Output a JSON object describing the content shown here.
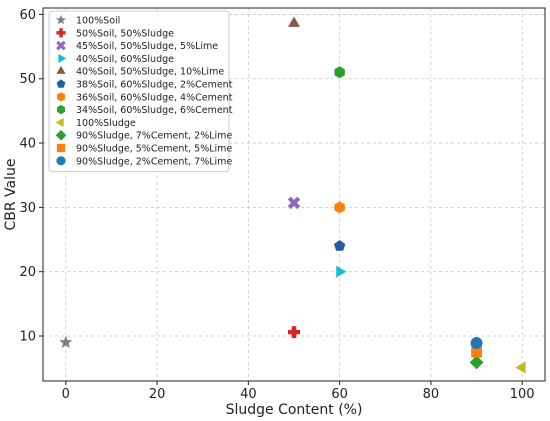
{
  "chart_data": {
    "type": "scatter",
    "title": "",
    "xlabel": "Sludge Content (%)",
    "ylabel": "CBR Value",
    "xlim": [
      -5,
      105
    ],
    "ylim": [
      3,
      61
    ],
    "xticks": [
      0,
      20,
      40,
      60,
      80,
      100
    ],
    "yticks": [
      10,
      20,
      30,
      40,
      50,
      60
    ],
    "grid": true,
    "grid_style": "dashed",
    "legend_position": "top-left",
    "series": [
      {
        "name": "100%Soil",
        "color": "#7f7f7f",
        "marker": "star",
        "points": [
          {
            "x": 0,
            "y": 9
          }
        ]
      },
      {
        "name": "50%Soil, 50%Sludge",
        "color": "#d62728",
        "marker": "plus",
        "points": [
          {
            "x": 50,
            "y": 10.6
          }
        ]
      },
      {
        "name": "45%Soil, 50%Sludge, 5%Lime",
        "color": "#9467bd",
        "marker": "x",
        "points": [
          {
            "x": 50,
            "y": 30.7
          }
        ]
      },
      {
        "name": "40%Soil, 60%Sludge",
        "color": "#17becf",
        "marker": "triangle-right",
        "points": [
          {
            "x": 60,
            "y": 20
          }
        ]
      },
      {
        "name": "40%Soil, 50%Sludge, 10%Lime",
        "color": "#8c564b",
        "marker": "triangle-up",
        "points": [
          {
            "x": 50,
            "y": 58.6
          }
        ]
      },
      {
        "name": "38%Soil, 60%Sludge, 2%Cement",
        "color": "#1f5fa0",
        "marker": "pentagon",
        "points": [
          {
            "x": 60,
            "y": 24
          }
        ]
      },
      {
        "name": "36%Soil, 60%Sludge, 4%Cement",
        "color": "#ff7f0e",
        "marker": "hexagon",
        "points": [
          {
            "x": 60,
            "y": 30
          }
        ]
      },
      {
        "name": "34%Soil, 60%Sludge, 6%Cement",
        "color": "#2ca02c",
        "marker": "hexagon",
        "points": [
          {
            "x": 60,
            "y": 51
          }
        ]
      },
      {
        "name": "100%Sludge",
        "color": "#bcbd22",
        "marker": "triangle-left",
        "points": [
          {
            "x": 100,
            "y": 5.1
          }
        ]
      },
      {
        "name": "90%Sludge, 7%Cement, 2%Lime",
        "color": "#2ca02c",
        "marker": "diamond",
        "points": [
          {
            "x": 90,
            "y": 5.9
          }
        ]
      },
      {
        "name": "90%Sludge, 5%Cement, 5%Lime",
        "color": "#ff7f0e",
        "marker": "square",
        "points": [
          {
            "x": 90,
            "y": 7.5
          }
        ]
      },
      {
        "name": "90%Sludge, 2%Cement, 7%Lime",
        "color": "#1f77b4",
        "marker": "circle",
        "points": [
          {
            "x": 90,
            "y": 8.9
          }
        ]
      }
    ]
  }
}
